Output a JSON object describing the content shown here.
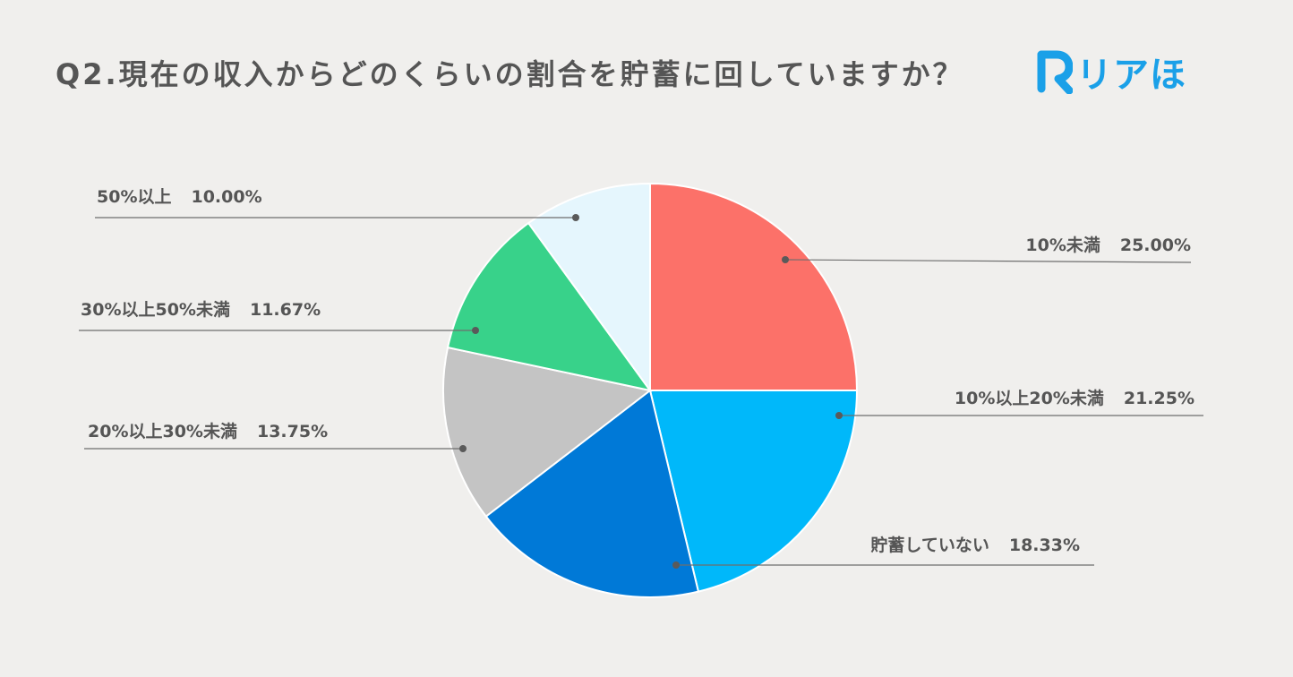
{
  "title": "Q2.現在の収入からどのくらいの割合を貯蓄に回していますか？",
  "logo": {
    "text": "リアほ",
    "icon": "logo-r-icon",
    "color": "#1aa0e8"
  },
  "chart_data": {
    "type": "pie",
    "title": "Q2.現在の収入からどのくらいの割合を貯蓄に回していますか？",
    "start_angle_deg": 0,
    "direction": "clockwise",
    "legend": "none",
    "slices": [
      {
        "label": "10%未満",
        "value": 25.0,
        "value_label": "25.00%",
        "color": "#fc7169"
      },
      {
        "label": "10%以上20%未満",
        "value": 21.25,
        "value_label": "21.25%",
        "color": "#00b8fa"
      },
      {
        "label": "貯蓄していない",
        "value": 18.33,
        "value_label": "18.33%",
        "color": "#0079d7"
      },
      {
        "label": "20%以上30%未満",
        "value": 13.75,
        "value_label": "13.75%",
        "color": "#c4c4c4"
      },
      {
        "label": "30%以上50%未満",
        "value": 11.67,
        "value_label": "11.67%",
        "color": "#38d28a"
      },
      {
        "label": "50%以上",
        "value": 10.0,
        "value_label": "10.00%",
        "color": "#e5f6fd"
      }
    ]
  }
}
